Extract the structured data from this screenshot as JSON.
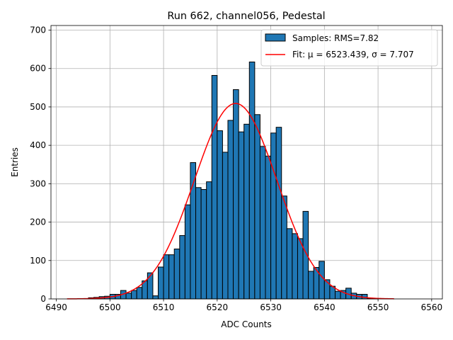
{
  "chart_data": {
    "type": "bar",
    "title": "Run 662, channel056, Pedestal",
    "xlabel": "ADC Counts",
    "ylabel": "Entries",
    "xlim": [
      6489,
      6562
    ],
    "ylim": [
      0,
      712
    ],
    "xticks": [
      6490,
      6500,
      6510,
      6520,
      6530,
      6540,
      6550,
      6560
    ],
    "yticks": [
      0,
      100,
      200,
      300,
      400,
      500,
      600,
      700
    ],
    "grid": true,
    "legend_position": "top-right",
    "bin_width": 1,
    "bins": [
      6492,
      6493,
      6494,
      6495,
      6496,
      6497,
      6498,
      6499,
      6500,
      6501,
      6502,
      6503,
      6504,
      6505,
      6506,
      6507,
      6508,
      6509,
      6510,
      6511,
      6512,
      6513,
      6514,
      6515,
      6516,
      6517,
      6518,
      6519,
      6520,
      6521,
      6522,
      6523,
      6524,
      6525,
      6526,
      6527,
      6528,
      6529,
      6530,
      6531,
      6532,
      6533,
      6534,
      6535,
      6536,
      6537,
      6538,
      6539,
      6540,
      6541,
      6542,
      6543,
      6544,
      6545,
      6546,
      6547,
      6548,
      6549,
      6550,
      6551,
      6552
    ],
    "counts": [
      0,
      0,
      1,
      1,
      3,
      4,
      6,
      7,
      12,
      12,
      22,
      15,
      22,
      30,
      47,
      68,
      8,
      83,
      115,
      115,
      130,
      165,
      245,
      355,
      290,
      285,
      305,
      582,
      438,
      382,
      465,
      545,
      435,
      455,
      617,
      480,
      397,
      372,
      432,
      447,
      268,
      183,
      170,
      157,
      228,
      72,
      82,
      98,
      50,
      33,
      20,
      22,
      28,
      15,
      12,
      12,
      2,
      1,
      0,
      0,
      0
    ],
    "series": [
      {
        "name": "Samples: RMS=7.82",
        "kind": "histogram",
        "color": "#1f77b4"
      },
      {
        "name": "Fit: μ = 6523.439, σ = 7.707",
        "kind": "gaussian_fit",
        "color": "#ff0000",
        "mu": 6523.439,
        "sigma": 7.707,
        "amplitude": 509,
        "x_range": [
          6492,
          6553
        ]
      }
    ]
  }
}
